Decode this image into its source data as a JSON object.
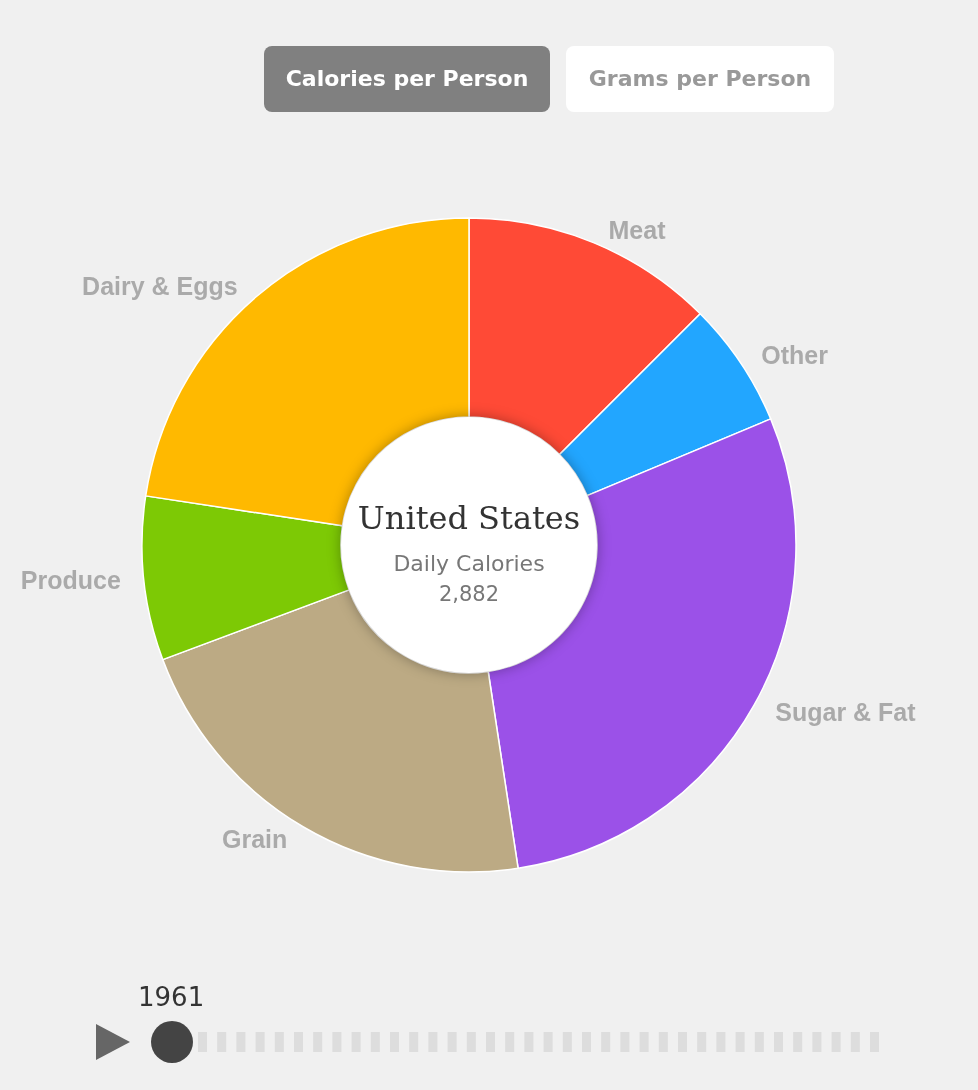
{
  "chart_data": {
    "type": "donut",
    "title": "United States",
    "subtitle": "Daily Calories",
    "annotations": [
      "2,882",
      "Calories per Person",
      "Grams per Person",
      "1961"
    ],
    "categories": [
      "Meat",
      "Other",
      "Sugar & Fat",
      "Grain",
      "Produce",
      "Dairy & Eggs"
    ],
    "values": [
      12.5,
      6.2,
      28.9,
      21.7,
      8.1,
      22.6
    ],
    "colors": [
      "#ff4a36",
      "#22a6ff",
      "#9b51e8",
      "#bcaa84",
      "#7dc905",
      "#ffb900"
    ]
  }
}
